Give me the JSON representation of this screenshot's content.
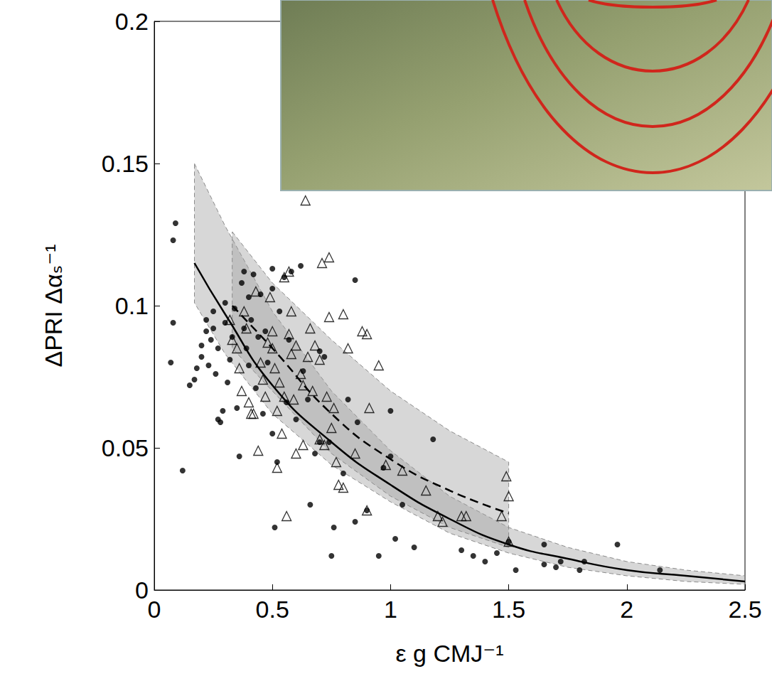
{
  "chart_data": {
    "type": "scatter",
    "x_label": "ε g CMJ⁻¹",
    "y_label": "ΔPRI Δαₛ⁻¹",
    "xlim": [
      0,
      2.5
    ],
    "xticks": [
      0,
      0.5,
      1,
      1.5,
      2,
      2.5
    ],
    "ylim": [
      0,
      0.2
    ],
    "yticks": [
      0,
      0.05,
      0.1,
      0.15,
      0.2
    ],
    "grid": false,
    "series": [
      {
        "type": "scatter",
        "marker": "circle",
        "color": "#000000",
        "x": [
          0.09,
          0.08,
          0.08,
          0.07,
          0.12,
          0.15,
          0.17,
          0.18,
          0.2,
          0.2,
          0.22,
          0.22,
          0.23,
          0.24,
          0.25,
          0.25,
          0.26,
          0.27,
          0.27,
          0.28,
          0.29,
          0.3,
          0.3,
          0.31,
          0.32,
          0.33,
          0.34,
          0.35,
          0.36,
          0.37,
          0.38,
          0.38,
          0.39,
          0.4,
          0.4,
          0.41,
          0.42,
          0.43,
          0.44,
          0.45,
          0.46,
          0.47,
          0.48,
          0.5,
          0.5,
          0.5,
          0.51,
          0.52,
          0.53,
          0.55,
          0.56,
          0.57,
          0.58,
          0.6,
          0.62,
          0.63,
          0.65,
          0.66,
          0.68,
          0.7,
          0.7,
          0.72,
          0.74,
          0.75,
          0.76,
          0.8,
          0.82,
          0.85,
          0.85,
          0.86,
          0.9,
          0.95,
          0.97,
          1.0,
          1.0,
          1.02,
          1.05,
          1.1,
          1.18,
          1.3,
          1.35,
          1.4,
          1.45,
          1.5,
          1.53,
          1.65,
          1.65,
          1.7,
          1.72,
          1.8,
          1.82,
          1.96,
          2.14
        ],
        "values": [
          0.129,
          0.123,
          0.094,
          0.08,
          0.042,
          0.072,
          0.074,
          0.078,
          0.082,
          0.086,
          0.091,
          0.095,
          0.079,
          0.088,
          0.098,
          0.092,
          0.076,
          0.085,
          0.06,
          0.059,
          0.063,
          0.101,
          0.094,
          0.073,
          0.081,
          0.089,
          0.099,
          0.064,
          0.047,
          0.108,
          0.112,
          0.092,
          0.085,
          0.103,
          0.079,
          0.095,
          0.111,
          0.071,
          0.089,
          0.104,
          0.062,
          0.091,
          0.08,
          0.113,
          0.106,
          0.055,
          0.022,
          0.045,
          0.098,
          0.11,
          0.066,
          0.088,
          0.112,
          0.06,
          0.114,
          0.077,
          0.067,
          0.03,
          0.048,
          0.084,
          0.052,
          0.082,
          0.052,
          0.012,
          0.022,
          0.041,
          0.067,
          0.109,
          0.024,
          0.059,
          0.028,
          0.012,
          0.043,
          0.063,
          0.047,
          0.018,
          0.03,
          0.015,
          0.053,
          0.014,
          0.012,
          0.01,
          0.013,
          0.017,
          0.007,
          0.016,
          0.009,
          0.008,
          0.01,
          0.007,
          0.01,
          0.016,
          0.007
        ]
      },
      {
        "type": "scatter",
        "marker": "triangle_open",
        "color": "#000000",
        "x": [
          0.32,
          0.33,
          0.35,
          0.36,
          0.37,
          0.38,
          0.39,
          0.4,
          0.41,
          0.42,
          0.43,
          0.44,
          0.45,
          0.46,
          0.47,
          0.48,
          0.49,
          0.5,
          0.5,
          0.51,
          0.52,
          0.52,
          0.53,
          0.54,
          0.55,
          0.55,
          0.56,
          0.57,
          0.57,
          0.58,
          0.58,
          0.59,
          0.6,
          0.6,
          0.62,
          0.63,
          0.63,
          0.64,
          0.65,
          0.66,
          0.67,
          0.68,
          0.7,
          0.7,
          0.71,
          0.72,
          0.73,
          0.74,
          0.74,
          0.75,
          0.76,
          0.77,
          0.78,
          0.8,
          0.8,
          0.82,
          0.85,
          0.88,
          0.9,
          0.9,
          0.91,
          0.95,
          0.98,
          1.05,
          1.15,
          1.2,
          1.22,
          1.3,
          1.32,
          1.47,
          1.49,
          1.5,
          1.5
        ],
        "values": [
          0.095,
          0.088,
          0.085,
          0.078,
          0.07,
          0.098,
          0.092,
          0.066,
          0.062,
          0.062,
          0.105,
          0.049,
          0.08,
          0.074,
          0.068,
          0.087,
          0.103,
          0.091,
          0.085,
          0.078,
          0.043,
          0.063,
          0.073,
          0.055,
          0.11,
          0.068,
          0.026,
          0.112,
          0.09,
          0.083,
          0.098,
          0.067,
          0.086,
          0.048,
          0.076,
          0.072,
          0.051,
          0.137,
          0.082,
          0.092,
          0.07,
          0.086,
          0.081,
          0.053,
          0.115,
          0.051,
          0.068,
          0.117,
          0.096,
          0.057,
          0.064,
          0.045,
          0.037,
          0.097,
          0.036,
          0.085,
          0.048,
          0.091,
          0.09,
          0.028,
          0.064,
          0.079,
          0.044,
          0.042,
          0.035,
          0.026,
          0.024,
          0.026,
          0.026,
          0.026,
          0.04,
          0.033,
          0.017
        ]
      },
      {
        "type": "line",
        "line_style": "solid",
        "color": "#000000",
        "x": [
          0.17,
          0.3,
          0.5,
          0.75,
          1.0,
          1.25,
          1.5,
          1.75,
          2.0,
          2.25,
          2.5
        ],
        "values": [
          0.115,
          0.097,
          0.072,
          0.052,
          0.037,
          0.025,
          0.016,
          0.011,
          0.007,
          0.005,
          0.003
        ],
        "lower": [
          0.101,
          0.083,
          0.062,
          0.044,
          0.031,
          0.02,
          0.013,
          0.008,
          0.005,
          0.003,
          0.002
        ],
        "upper": [
          0.15,
          0.128,
          0.098,
          0.07,
          0.049,
          0.033,
          0.022,
          0.015,
          0.01,
          0.007,
          0.005
        ]
      },
      {
        "type": "line",
        "line_style": "dashed",
        "color": "#000000",
        "x": [
          0.33,
          0.5,
          0.75,
          1.0,
          1.25,
          1.5
        ],
        "values": [
          0.1,
          0.085,
          0.062,
          0.046,
          0.035,
          0.027
        ],
        "lower": [
          0.085,
          0.07,
          0.048,
          0.033,
          0.022,
          0.015
        ],
        "upper": [
          0.126,
          0.108,
          0.088,
          0.07,
          0.056,
          0.045
        ]
      }
    ]
  }
}
